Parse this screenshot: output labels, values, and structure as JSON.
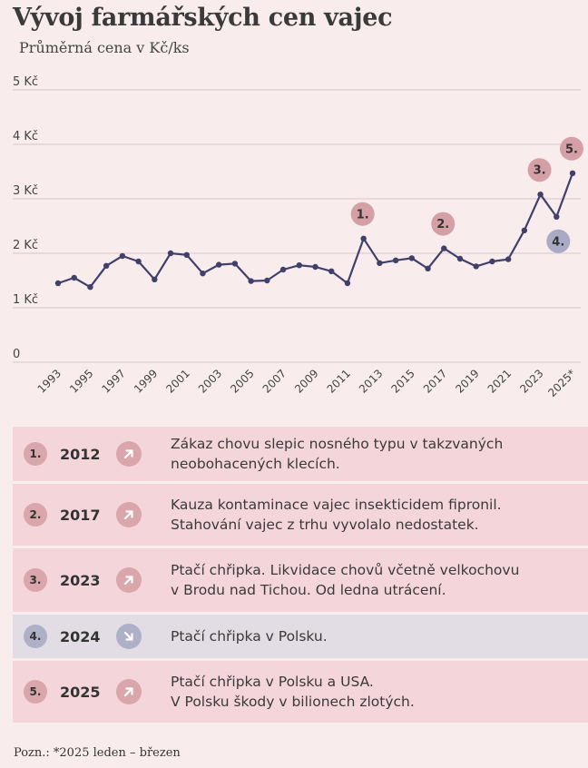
{
  "title": "Vývoj farmářských cen vajec",
  "subtitle": "Průměrná cena v Kč/ks",
  "chart_data": {
    "type": "line",
    "x": [
      "1993",
      "1994",
      "1995",
      "1996",
      "1997",
      "1998",
      "1999",
      "2000",
      "2001",
      "2002",
      "2003",
      "2004",
      "2005",
      "2006",
      "2007",
      "2008",
      "2009",
      "2010",
      "2011",
      "2012",
      "2013",
      "2014",
      "2015",
      "2016",
      "2017",
      "2018",
      "2019",
      "2020",
      "2021",
      "2022",
      "2023",
      "2024",
      "2025*"
    ],
    "values": [
      1.45,
      1.55,
      1.38,
      1.77,
      1.95,
      1.85,
      1.52,
      2.0,
      1.97,
      1.63,
      1.79,
      1.81,
      1.49,
      1.5,
      1.7,
      1.78,
      1.75,
      1.67,
      1.45,
      2.27,
      1.82,
      1.87,
      1.91,
      1.72,
      2.09,
      1.9,
      1.76,
      1.85,
      1.89,
      2.42,
      3.08,
      2.67,
      3.47
    ],
    "ylim": [
      0,
      5
    ],
    "yticks": [
      "0",
      "1 Kč",
      "2 Kč",
      "3 Kč",
      "4 Kč",
      "5 Kč"
    ],
    "xticks": [
      "1993",
      "1995",
      "1997",
      "1999",
      "2001",
      "2003",
      "2005",
      "2007",
      "2009",
      "2011",
      "2013",
      "2015",
      "2017",
      "2019",
      "2021",
      "2023",
      "2025*"
    ],
    "grid": true,
    "line_color": "#40406a",
    "annotations": [
      {
        "label": "1.",
        "x": "2012",
        "color": "#d4a0a6"
      },
      {
        "label": "2.",
        "x": "2017",
        "color": "#d4a0a6"
      },
      {
        "label": "3.",
        "x": "2023",
        "color": "#d4a0a6"
      },
      {
        "label": "4.",
        "x": "2024",
        "color": "#a9abc6"
      },
      {
        "label": "5.",
        "x": "2025*",
        "color": "#d4a0a6"
      }
    ]
  },
  "events": [
    {
      "num": "1.",
      "year": "2012",
      "direction": "up",
      "lines": [
        "Zákaz chovu slepic nosného typu v takzvaných",
        "neobohacených klecích."
      ],
      "bg": "#f4d6da",
      "badge": "#d9a6ac",
      "arrow_bg": "#d9a6ac"
    },
    {
      "num": "2.",
      "year": "2017",
      "direction": "up",
      "lines": [
        "Kauza kontaminace vajec insekticidem fipronil.",
        "Stahování vajec z trhu vyvolalo nedostatek."
      ],
      "bg": "#f4d6da",
      "badge": "#d9a6ac",
      "arrow_bg": "#d9a6ac"
    },
    {
      "num": "3.",
      "year": "2023",
      "direction": "up",
      "lines": [
        "Ptačí chřipka. Likvidace chovů včetně velkochovu",
        "v Brodu nad Tichou. Od ledna utrácení."
      ],
      "bg": "#f4d6da",
      "badge": "#d9a6ac",
      "arrow_bg": "#d9a6ac"
    },
    {
      "num": "4.",
      "year": "2024",
      "direction": "down",
      "lines": [
        "Ptačí chřipka v Polsku."
      ],
      "bg": "#e2dce4",
      "badge": "#aeb0c8",
      "arrow_bg": "#aeb0c8"
    },
    {
      "num": "5.",
      "year": "2025",
      "direction": "up",
      "lines": [
        "Ptačí chřipka v Polsku a USA.",
        "V Polsku škody v bilionech zlotých."
      ],
      "bg": "#f4d6da",
      "badge": "#d9a6ac",
      "arrow_bg": "#d9a6ac"
    }
  ],
  "note": "Pozn.: *2025 leden – březen"
}
